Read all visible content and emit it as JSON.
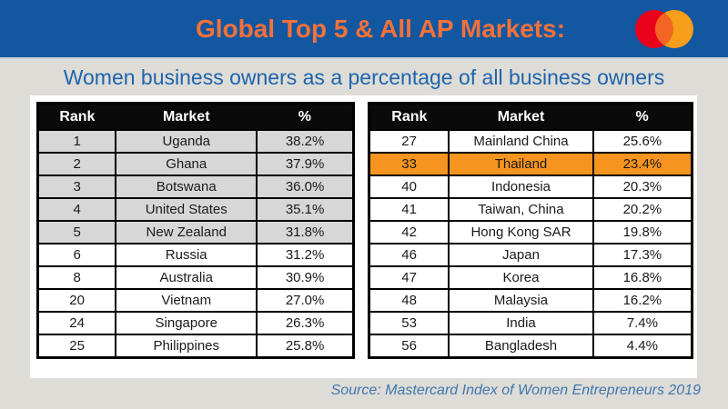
{
  "header": {
    "title": "Global Top 5 & All AP Markets:",
    "logo": {
      "name": "mastercard-logo",
      "left_circle_color": "#eb001b",
      "right_circle_color": "#f79e1b",
      "overlap_color": "#f26522"
    }
  },
  "subtitle": "Women business owners as a percentage of all business owners",
  "tables": {
    "columns": [
      "Rank",
      "Market",
      "%"
    ],
    "left": {
      "rows": [
        {
          "rank": "1",
          "market": "Uganda",
          "pct": "38.2%",
          "bg": "gray"
        },
        {
          "rank": "2",
          "market": "Ghana",
          "pct": "37.9%",
          "bg": "gray"
        },
        {
          "rank": "3",
          "market": "Botswana",
          "pct": "36.0%",
          "bg": "gray"
        },
        {
          "rank": "4",
          "market": "United States",
          "pct": "35.1%",
          "bg": "gray"
        },
        {
          "rank": "5",
          "market": "New Zealand",
          "pct": "31.8%",
          "bg": "gray"
        },
        {
          "rank": "6",
          "market": "Russia",
          "pct": "31.2%",
          "bg": "white"
        },
        {
          "rank": "8",
          "market": "Australia",
          "pct": "30.9%",
          "bg": "white"
        },
        {
          "rank": "20",
          "market": "Vietnam",
          "pct": "27.0%",
          "bg": "white"
        },
        {
          "rank": "24",
          "market": "Singapore",
          "pct": "26.3%",
          "bg": "white"
        },
        {
          "rank": "25",
          "market": "Philippines",
          "pct": "25.8%",
          "bg": "white"
        }
      ]
    },
    "right": {
      "rows": [
        {
          "rank": "27",
          "market": "Mainland China",
          "pct": "25.6%",
          "bg": "white"
        },
        {
          "rank": "33",
          "market": "Thailand",
          "pct": "23.4%",
          "bg": "orange"
        },
        {
          "rank": "40",
          "market": "Indonesia",
          "pct": "20.3%",
          "bg": "white"
        },
        {
          "rank": "41",
          "market": "Taiwan, China",
          "pct": "20.2%",
          "bg": "white"
        },
        {
          "rank": "42",
          "market": "Hong Kong SAR",
          "pct": "19.8%",
          "bg": "white"
        },
        {
          "rank": "46",
          "market": "Japan",
          "pct": "17.3%",
          "bg": "white"
        },
        {
          "rank": "47",
          "market": "Korea",
          "pct": "16.8%",
          "bg": "white"
        },
        {
          "rank": "48",
          "market": "Malaysia",
          "pct": "16.2%",
          "bg": "white"
        },
        {
          "rank": "53",
          "market": "India",
          "pct": "7.4%",
          "bg": "white"
        },
        {
          "rank": "56",
          "market": "Bangladesh",
          "pct": "4.4%",
          "bg": "white"
        }
      ]
    }
  },
  "source": "Source: Mastercard Index of Women Entrepreneurs 2019",
  "colors": {
    "bar_blue": "#1257a0",
    "title_orange": "#f4713a",
    "subtitle_blue": "#1d64ad",
    "background_gray": "#dedcd7",
    "row_gray": "#d7d7d7",
    "highlight_orange": "#f5941f",
    "header_black": "#0a0a0a",
    "source_blue": "#3f77b0"
  },
  "chart_data": [
    {
      "type": "table",
      "title": "Global Top 5 markets - Women business owners as a percentage of all business owners",
      "columns": [
        "Rank",
        "Market",
        "%"
      ],
      "rows": [
        [
          1,
          "Uganda",
          38.2
        ],
        [
          2,
          "Ghana",
          37.9
        ],
        [
          3,
          "Botswana",
          36.0
        ],
        [
          4,
          "United States",
          35.1
        ],
        [
          5,
          "New Zealand",
          31.8
        ],
        [
          6,
          "Russia",
          31.2
        ],
        [
          8,
          "Australia",
          30.9
        ],
        [
          20,
          "Vietnam",
          27.0
        ],
        [
          24,
          "Singapore",
          26.3
        ],
        [
          25,
          "Philippines",
          25.8
        ]
      ],
      "notes": "Top 5 rows (ranks 1-5) shaded gray"
    },
    {
      "type": "table",
      "title": "All AP markets - Women business owners as a percentage of all business owners",
      "columns": [
        "Rank",
        "Market",
        "%"
      ],
      "rows": [
        [
          27,
          "Mainland China",
          25.6
        ],
        [
          33,
          "Thailand",
          23.4
        ],
        [
          40,
          "Indonesia",
          20.3
        ],
        [
          41,
          "Taiwan, China",
          20.2
        ],
        [
          42,
          "Hong Kong SAR",
          19.8
        ],
        [
          46,
          "Japan",
          17.3
        ],
        [
          47,
          "Korea",
          16.8
        ],
        [
          48,
          "Malaysia",
          16.2
        ],
        [
          53,
          "India",
          7.4
        ],
        [
          56,
          "Bangladesh",
          4.4
        ]
      ],
      "notes": "Thailand row highlighted orange"
    }
  ]
}
